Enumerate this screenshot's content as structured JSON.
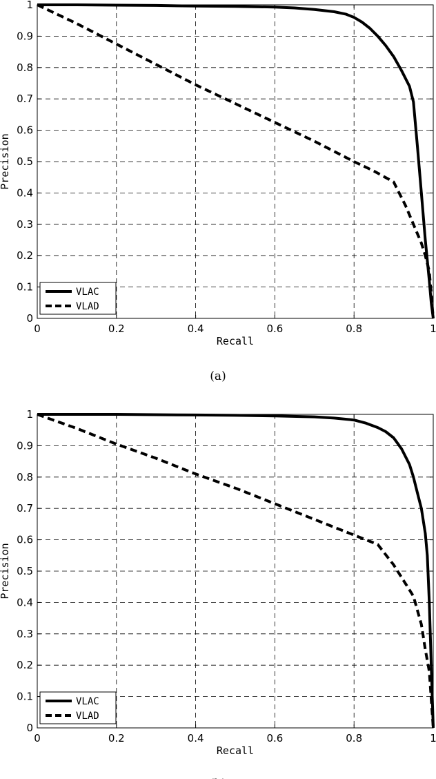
{
  "chart_data": [
    {
      "type": "line",
      "caption": "(a)",
      "xlabel": "Recall",
      "ylabel": "Precision",
      "xlim": [
        0,
        1
      ],
      "ylim": [
        0,
        1
      ],
      "x_ticks": [
        "0",
        "0.2",
        "0.4",
        "0.6",
        "0.8",
        "1"
      ],
      "y_ticks": [
        "0",
        "0.1",
        "0.2",
        "0.3",
        "0.4",
        "0.5",
        "0.6",
        "0.7",
        "0.8",
        "0.9",
        "1"
      ],
      "grid": true,
      "legend_position": "bottom-left",
      "series": [
        {
          "name": "VLAC",
          "style": "solid",
          "x": [
            0,
            0.1,
            0.2,
            0.3,
            0.4,
            0.5,
            0.6,
            0.65,
            0.7,
            0.75,
            0.78,
            0.8,
            0.82,
            0.84,
            0.86,
            0.88,
            0.9,
            0.92,
            0.94,
            0.95,
            0.96,
            0.97,
            0.98,
            0.99,
            0.995,
            1.0
          ],
          "y": [
            1.0,
            1.0,
            0.999,
            0.998,
            0.996,
            0.995,
            0.993,
            0.99,
            0.985,
            0.978,
            0.97,
            0.96,
            0.945,
            0.925,
            0.9,
            0.87,
            0.835,
            0.79,
            0.74,
            0.69,
            0.55,
            0.4,
            0.25,
            0.12,
            0.05,
            0.0
          ]
        },
        {
          "name": "VLAD",
          "style": "dashed",
          "x": [
            0,
            0.1,
            0.2,
            0.3,
            0.4,
            0.5,
            0.6,
            0.7,
            0.8,
            0.85,
            0.9,
            0.93,
            0.95,
            0.97,
            0.98,
            0.99,
            1.0
          ],
          "y": [
            1.0,
            0.94,
            0.875,
            0.81,
            0.745,
            0.685,
            0.625,
            0.565,
            0.5,
            0.47,
            0.435,
            0.36,
            0.3,
            0.24,
            0.2,
            0.15,
            0.0
          ]
        }
      ]
    },
    {
      "type": "line",
      "caption": "(b)",
      "xlabel": "Recall",
      "ylabel": "Precision",
      "xlim": [
        0,
        1
      ],
      "ylim": [
        0,
        1
      ],
      "x_ticks": [
        "0",
        "0.2",
        "0.4",
        "0.6",
        "0.8",
        "1"
      ],
      "y_ticks": [
        "0",
        "0.1",
        "0.2",
        "0.3",
        "0.4",
        "0.5",
        "0.6",
        "0.7",
        "0.8",
        "0.9",
        "1"
      ],
      "grid": true,
      "legend_position": "bottom-left",
      "series": [
        {
          "name": "VLAC",
          "style": "solid",
          "x": [
            0,
            0.1,
            0.2,
            0.3,
            0.4,
            0.5,
            0.6,
            0.7,
            0.75,
            0.8,
            0.83,
            0.86,
            0.88,
            0.9,
            0.92,
            0.94,
            0.95,
            0.96,
            0.97,
            0.98,
            0.985,
            0.99,
            0.995,
            1.0
          ],
          "y": [
            1.0,
            1.0,
            1.0,
            0.999,
            0.998,
            0.997,
            0.995,
            0.992,
            0.988,
            0.982,
            0.972,
            0.958,
            0.945,
            0.925,
            0.89,
            0.84,
            0.8,
            0.75,
            0.7,
            0.62,
            0.55,
            0.4,
            0.2,
            0.0
          ]
        },
        {
          "name": "VLAD",
          "style": "dashed",
          "x": [
            0,
            0.1,
            0.2,
            0.3,
            0.4,
            0.5,
            0.6,
            0.7,
            0.8,
            0.86,
            0.9,
            0.95,
            0.97,
            0.98,
            0.99,
            1.0
          ],
          "y": [
            1.0,
            0.955,
            0.905,
            0.86,
            0.81,
            0.765,
            0.715,
            0.665,
            0.615,
            0.585,
            0.52,
            0.42,
            0.33,
            0.25,
            0.18,
            0.0
          ]
        }
      ]
    }
  ]
}
